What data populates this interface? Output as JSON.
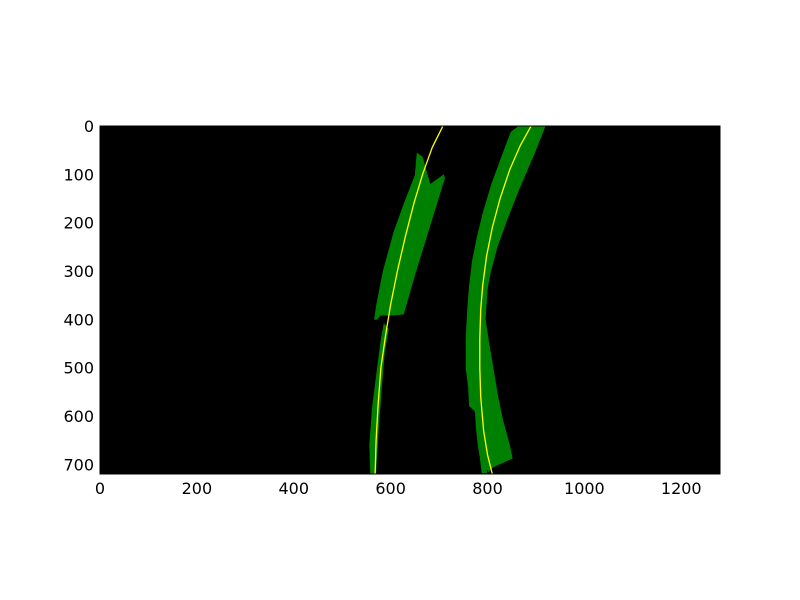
{
  "chart_data": {
    "type": "image",
    "title": "",
    "xlabel": "",
    "ylabel": "",
    "xlim": [
      0,
      1280
    ],
    "ylim": [
      720,
      0
    ],
    "x_ticks": [
      0,
      200,
      400,
      600,
      800,
      1000,
      1200
    ],
    "y_ticks": [
      0,
      100,
      200,
      300,
      400,
      500,
      600,
      700
    ],
    "grid": false,
    "legend": "none",
    "background_color": "#000000",
    "region_color": "#008000",
    "line_color": "#ffff00",
    "regions": [
      {
        "name": "left-lane-upper-region",
        "polygon": [
          [
            654,
            55
          ],
          [
            666,
            64
          ],
          [
            682,
            120
          ],
          [
            710,
            100
          ],
          [
            712,
            108
          ],
          [
            650,
            310
          ],
          [
            627,
            390
          ],
          [
            602,
            392
          ],
          [
            580,
            392
          ],
          [
            570,
            402
          ],
          [
            566,
            400
          ],
          [
            570,
            372
          ],
          [
            584,
            300
          ],
          [
            606,
            220
          ],
          [
            628,
            158
          ],
          [
            650,
            102
          ]
        ]
      },
      {
        "name": "left-lane-lower-region",
        "polygon": [
          [
            586,
            408
          ],
          [
            596,
            420
          ],
          [
            588,
            468
          ],
          [
            582,
            540
          ],
          [
            576,
            618
          ],
          [
            570,
            720
          ],
          [
            558,
            720
          ],
          [
            556,
            660
          ],
          [
            562,
            580
          ],
          [
            572,
            500
          ],
          [
            580,
            440
          ]
        ]
      },
      {
        "name": "right-lane-region",
        "polygon": [
          [
            864,
            0
          ],
          [
            920,
            0
          ],
          [
            896,
            60
          ],
          [
            866,
            130
          ],
          [
            840,
            196
          ],
          [
            820,
            252
          ],
          [
            806,
            306
          ],
          [
            800,
            340
          ],
          [
            796,
            400
          ],
          [
            802,
            440
          ],
          [
            812,
            500
          ],
          [
            822,
            560
          ],
          [
            832,
            608
          ],
          [
            846,
            660
          ],
          [
            852,
            688
          ],
          [
            812,
            706
          ],
          [
            800,
            718
          ],
          [
            788,
            718
          ],
          [
            784,
            686
          ],
          [
            780,
            660
          ],
          [
            776,
            624
          ],
          [
            774,
            590
          ],
          [
            762,
            580
          ],
          [
            760,
            540
          ],
          [
            755,
            500
          ],
          [
            755,
            440
          ],
          [
            758,
            380
          ],
          [
            762,
            330
          ],
          [
            768,
            280
          ],
          [
            778,
            230
          ],
          [
            790,
            180
          ],
          [
            808,
            120
          ],
          [
            830,
            60
          ],
          [
            848,
            12
          ]
        ]
      }
    ],
    "fit_lines": [
      {
        "name": "left-lane-fit",
        "points": [
          [
            568,
            720
          ],
          [
            570,
            650
          ],
          [
            574,
            580
          ],
          [
            580,
            500
          ],
          [
            590,
            430
          ],
          [
            600,
            370
          ],
          [
            614,
            300
          ],
          [
            630,
            230
          ],
          [
            648,
            160
          ],
          [
            666,
            100
          ],
          [
            686,
            44
          ],
          [
            708,
            0
          ]
        ]
      },
      {
        "name": "right-lane-fit",
        "points": [
          [
            810,
            720
          ],
          [
            800,
            680
          ],
          [
            792,
            630
          ],
          [
            786,
            560
          ],
          [
            784,
            500
          ],
          [
            784,
            440
          ],
          [
            786,
            380
          ],
          [
            790,
            330
          ],
          [
            798,
            270
          ],
          [
            810,
            210
          ],
          [
            826,
            150
          ],
          [
            846,
            90
          ],
          [
            868,
            40
          ],
          [
            890,
            0
          ]
        ]
      }
    ]
  }
}
